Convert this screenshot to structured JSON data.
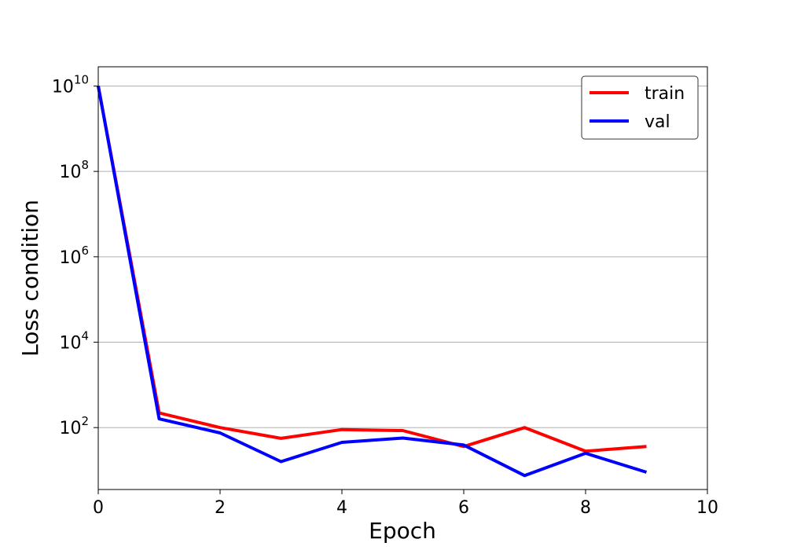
{
  "chart_data": {
    "type": "line",
    "title": "",
    "xlabel": "Epoch",
    "ylabel": "Loss condition",
    "xlim": [
      0,
      10
    ],
    "ylim_log10": [
      0.55,
      10.45
    ],
    "yscale": "log",
    "grid": "y-major",
    "legend_position": "top-right",
    "x_ticks": [
      "0",
      "2",
      "4",
      "6",
      "8",
      "10"
    ],
    "y_ticks": [
      {
        "base": "10",
        "exp": "2"
      },
      {
        "base": "10",
        "exp": "4"
      },
      {
        "base": "10",
        "exp": "6"
      },
      {
        "base": "10",
        "exp": "8"
      },
      {
        "base": "10",
        "exp": "10"
      }
    ],
    "x": [
      0,
      1,
      2,
      3,
      4,
      5,
      6,
      7,
      8,
      9
    ],
    "series": [
      {
        "name": "train",
        "color": "#ff0000",
        "values": [
          10000000000,
          220,
          100,
          56,
          90,
          85,
          36,
          100,
          28,
          36
        ]
      },
      {
        "name": "val",
        "color": "#0000ff",
        "values": [
          10000000000,
          160,
          75,
          16,
          45,
          57,
          39,
          7.5,
          25,
          9
        ]
      }
    ]
  }
}
